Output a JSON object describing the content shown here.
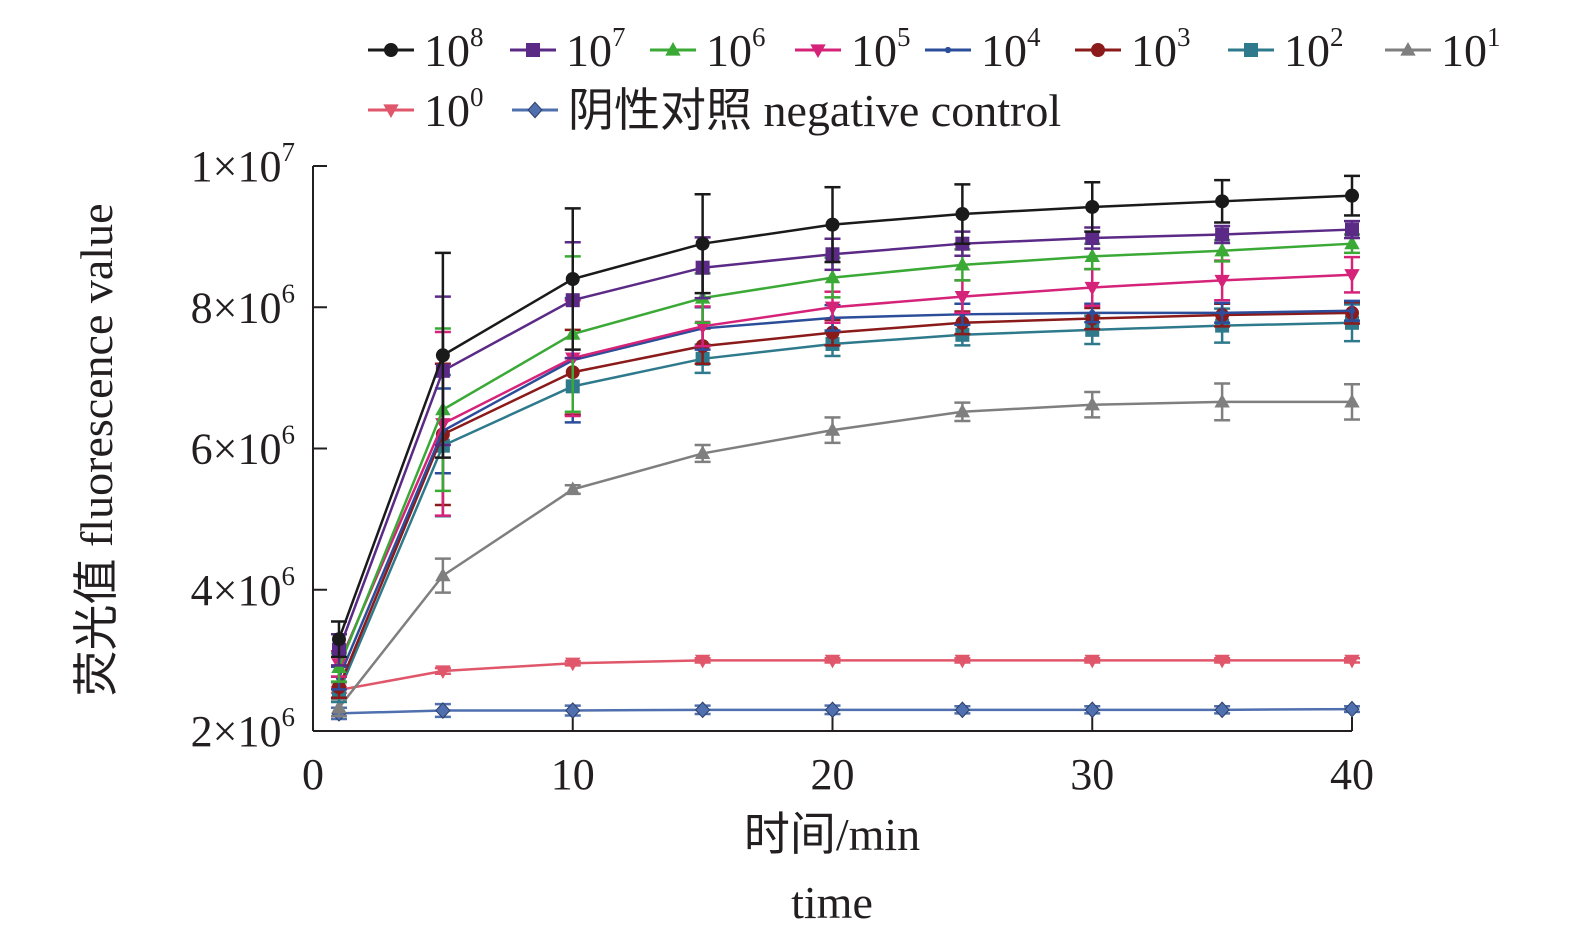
{
  "chart_data": {
    "type": "line",
    "title": "",
    "xlabel_cn": "时间/min",
    "xlabel_en": "time",
    "ylabel": "荧光值 fluorescence value",
    "xlim": [
      0,
      40
    ],
    "ylim": [
      2000000,
      10000000
    ],
    "x_ticks": [
      {
        "value": 0,
        "label": "0"
      },
      {
        "value": 10,
        "label": "10"
      },
      {
        "value": 20,
        "label": "20"
      },
      {
        "value": 30,
        "label": "30"
      },
      {
        "value": 40,
        "label": "40"
      }
    ],
    "y_ticks": [
      {
        "value": 2000000,
        "mantissa": "2",
        "times": "×",
        "base": "10",
        "exp": "6"
      },
      {
        "value": 4000000,
        "mantissa": "4",
        "times": "×",
        "base": "10",
        "exp": "6"
      },
      {
        "value": 6000000,
        "mantissa": "6",
        "times": "×",
        "base": "10",
        "exp": "6"
      },
      {
        "value": 8000000,
        "mantissa": "8",
        "times": "×",
        "base": "10",
        "exp": "6"
      },
      {
        "value": 10000000,
        "mantissa": "1",
        "times": "×",
        "base": "10",
        "exp": "7"
      }
    ],
    "x": [
      1,
      5,
      10,
      15,
      20,
      25,
      30,
      35,
      40
    ],
    "series": [
      {
        "name": "10^8",
        "base": "10",
        "exp": "8",
        "suffix": "",
        "color": "#1a1a1a",
        "marker": "circle",
        "values": [
          3300000,
          7320000,
          8400000,
          8900000,
          9170000,
          9320000,
          9420000,
          9500000,
          9580000
        ],
        "errors": [
          250000,
          1450000,
          1000000,
          700000,
          530000,
          420000,
          350000,
          300000,
          280000
        ]
      },
      {
        "name": "10^7",
        "base": "10",
        "exp": "7",
        "suffix": "",
        "color": "#5b2a86",
        "marker": "square",
        "values": [
          3150000,
          7100000,
          8100000,
          8560000,
          8750000,
          8900000,
          8980000,
          9030000,
          9100000
        ],
        "errors": [
          220000,
          1050000,
          820000,
          430000,
          220000,
          170000,
          150000,
          120000,
          120000
        ]
      },
      {
        "name": "10^6",
        "base": "10",
        "exp": "6",
        "suffix": "",
        "color": "#3aa935",
        "marker": "triangle",
        "values": [
          2900000,
          6550000,
          7620000,
          8130000,
          8420000,
          8600000,
          8720000,
          8800000,
          8900000
        ],
        "errors": [
          200000,
          1150000,
          1100000,
          350000,
          280000,
          220000,
          180000,
          150000,
          130000
        ]
      },
      {
        "name": "10^5",
        "base": "10",
        "exp": "5",
        "suffix": "",
        "color": "#d6237a",
        "marker": "triangle-down",
        "values": [
          2950000,
          6350000,
          7280000,
          7730000,
          8000000,
          8150000,
          8280000,
          8380000,
          8460000
        ],
        "errors": [
          180000,
          1300000,
          820000,
          280000,
          220000,
          230000,
          260000,
          280000,
          250000
        ]
      },
      {
        "name": "10^4",
        "base": "10",
        "exp": "4",
        "suffix": "",
        "color": "#2b4d9a",
        "marker": "dot",
        "values": [
          2750000,
          6250000,
          7250000,
          7700000,
          7850000,
          7900000,
          7920000,
          7920000,
          7950000
        ],
        "errors": [
          160000,
          600000,
          880000,
          300000,
          180000,
          150000,
          130000,
          140000,
          140000
        ]
      },
      {
        "name": "10^3",
        "base": "10",
        "exp": "3",
        "suffix": "",
        "color": "#8b1a1a",
        "marker": "circle",
        "values": [
          2620000,
          6200000,
          7080000,
          7450000,
          7640000,
          7780000,
          7840000,
          7890000,
          7920000
        ],
        "errors": [
          150000,
          1000000,
          600000,
          250000,
          180000,
          160000,
          150000,
          160000,
          150000
        ]
      },
      {
        "name": "10^2",
        "base": "10",
        "exp": "2",
        "suffix": "",
        "color": "#2e7a8c",
        "marker": "square",
        "values": [
          2550000,
          6040000,
          6880000,
          7270000,
          7480000,
          7610000,
          7680000,
          7740000,
          7780000
        ],
        "errors": [
          140000,
          1000000,
          400000,
          200000,
          170000,
          150000,
          200000,
          240000,
          260000
        ]
      },
      {
        "name": "10^1",
        "base": "10",
        "exp": "1",
        "suffix": "",
        "color": "#7f7f7f",
        "marker": "triangle",
        "values": [
          2330000,
          4200000,
          5420000,
          5930000,
          6260000,
          6520000,
          6620000,
          6660000,
          6660000
        ],
        "errors": [
          120000,
          240000,
          60000,
          120000,
          180000,
          130000,
          180000,
          260000,
          250000
        ]
      },
      {
        "name": "10^0",
        "base": "10",
        "exp": "0",
        "suffix": "",
        "color": "#e0566a",
        "marker": "triangle-down",
        "values": [
          2580000,
          2850000,
          2960000,
          3000000,
          3000000,
          3000000,
          3000000,
          3000000,
          3000000
        ],
        "errors": [
          40000,
          40000,
          30000,
          30000,
          30000,
          30000,
          30000,
          30000,
          30000
        ]
      },
      {
        "name": "阴性对照 negative control",
        "base": "",
        "exp": "",
        "suffix": "阴性对照 negative control",
        "color": "#4f6fae",
        "marker": "diamond",
        "values": [
          2250000,
          2290000,
          2290000,
          2300000,
          2300000,
          2300000,
          2300000,
          2300000,
          2310000
        ],
        "errors": [
          80000,
          90000,
          70000,
          60000,
          60000,
          50000,
          50000,
          50000,
          40000
        ]
      }
    ]
  }
}
